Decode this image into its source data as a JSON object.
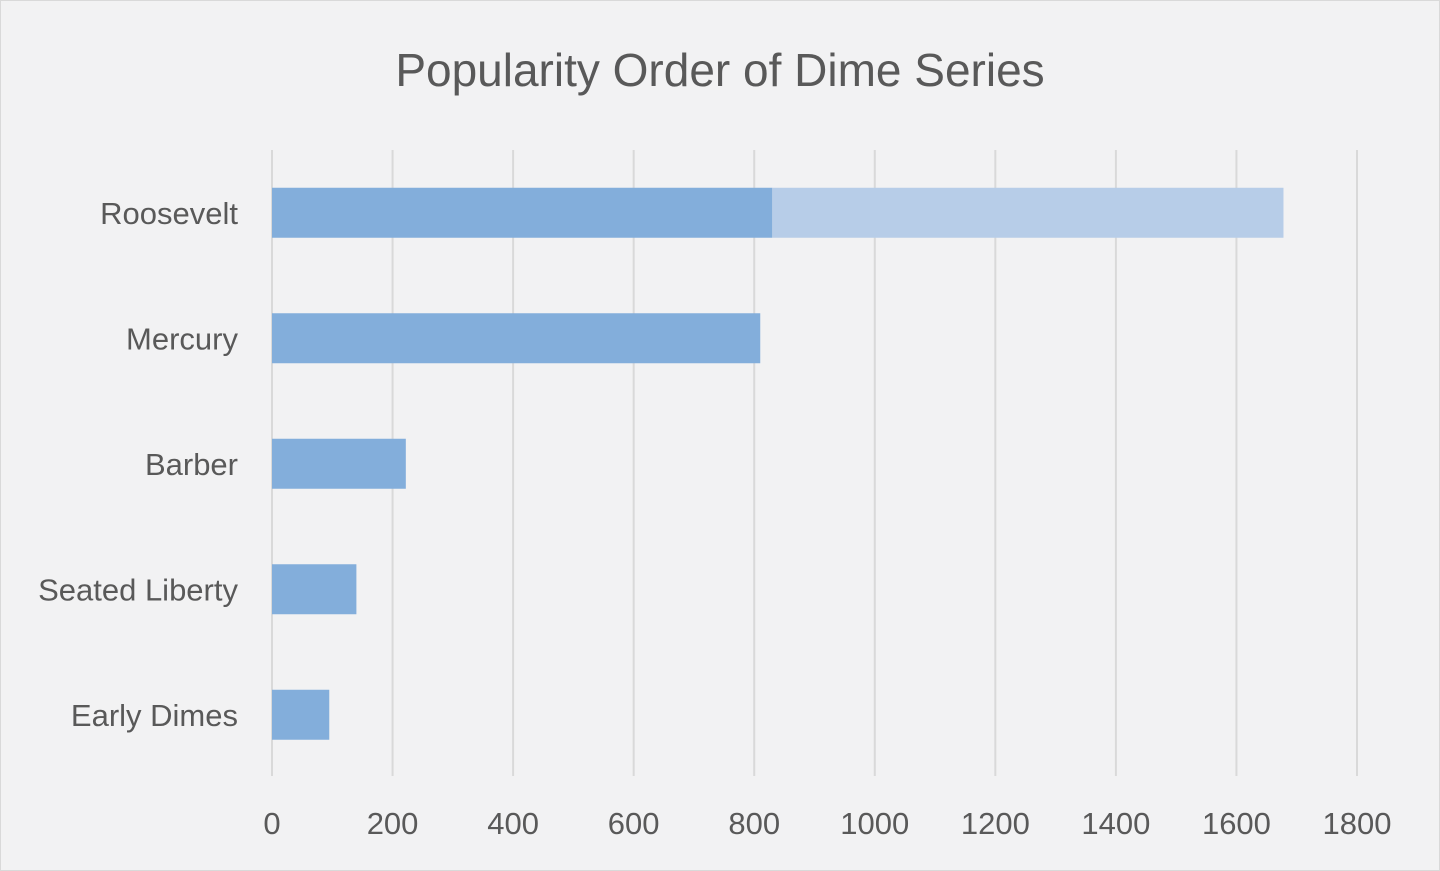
{
  "chart_data": {
    "type": "bar",
    "orientation": "horizontal",
    "stacked": true,
    "title": "Popularity Order of Dime Series",
    "xlabel": "",
    "ylabel": "",
    "categories": [
      "Roosevelt",
      "Mercury",
      "Barber",
      "Seated Liberty",
      "Early Dimes"
    ],
    "series": [
      {
        "values": [
          830,
          810,
          222,
          140,
          95
        ],
        "color": "#83aedb"
      },
      {
        "values": [
          848,
          0,
          0,
          0,
          0
        ],
        "color": "#b7cde8"
      }
    ],
    "xlim": [
      0,
      1800
    ],
    "xticks": [
      "0",
      "200",
      "400",
      "600",
      "800",
      "1000",
      "1200",
      "1400",
      "1600",
      "1800"
    ],
    "grid": true,
    "gridline_color": "#d9d9d9",
    "background_color": "#f2f2f3",
    "legend": "none"
  }
}
